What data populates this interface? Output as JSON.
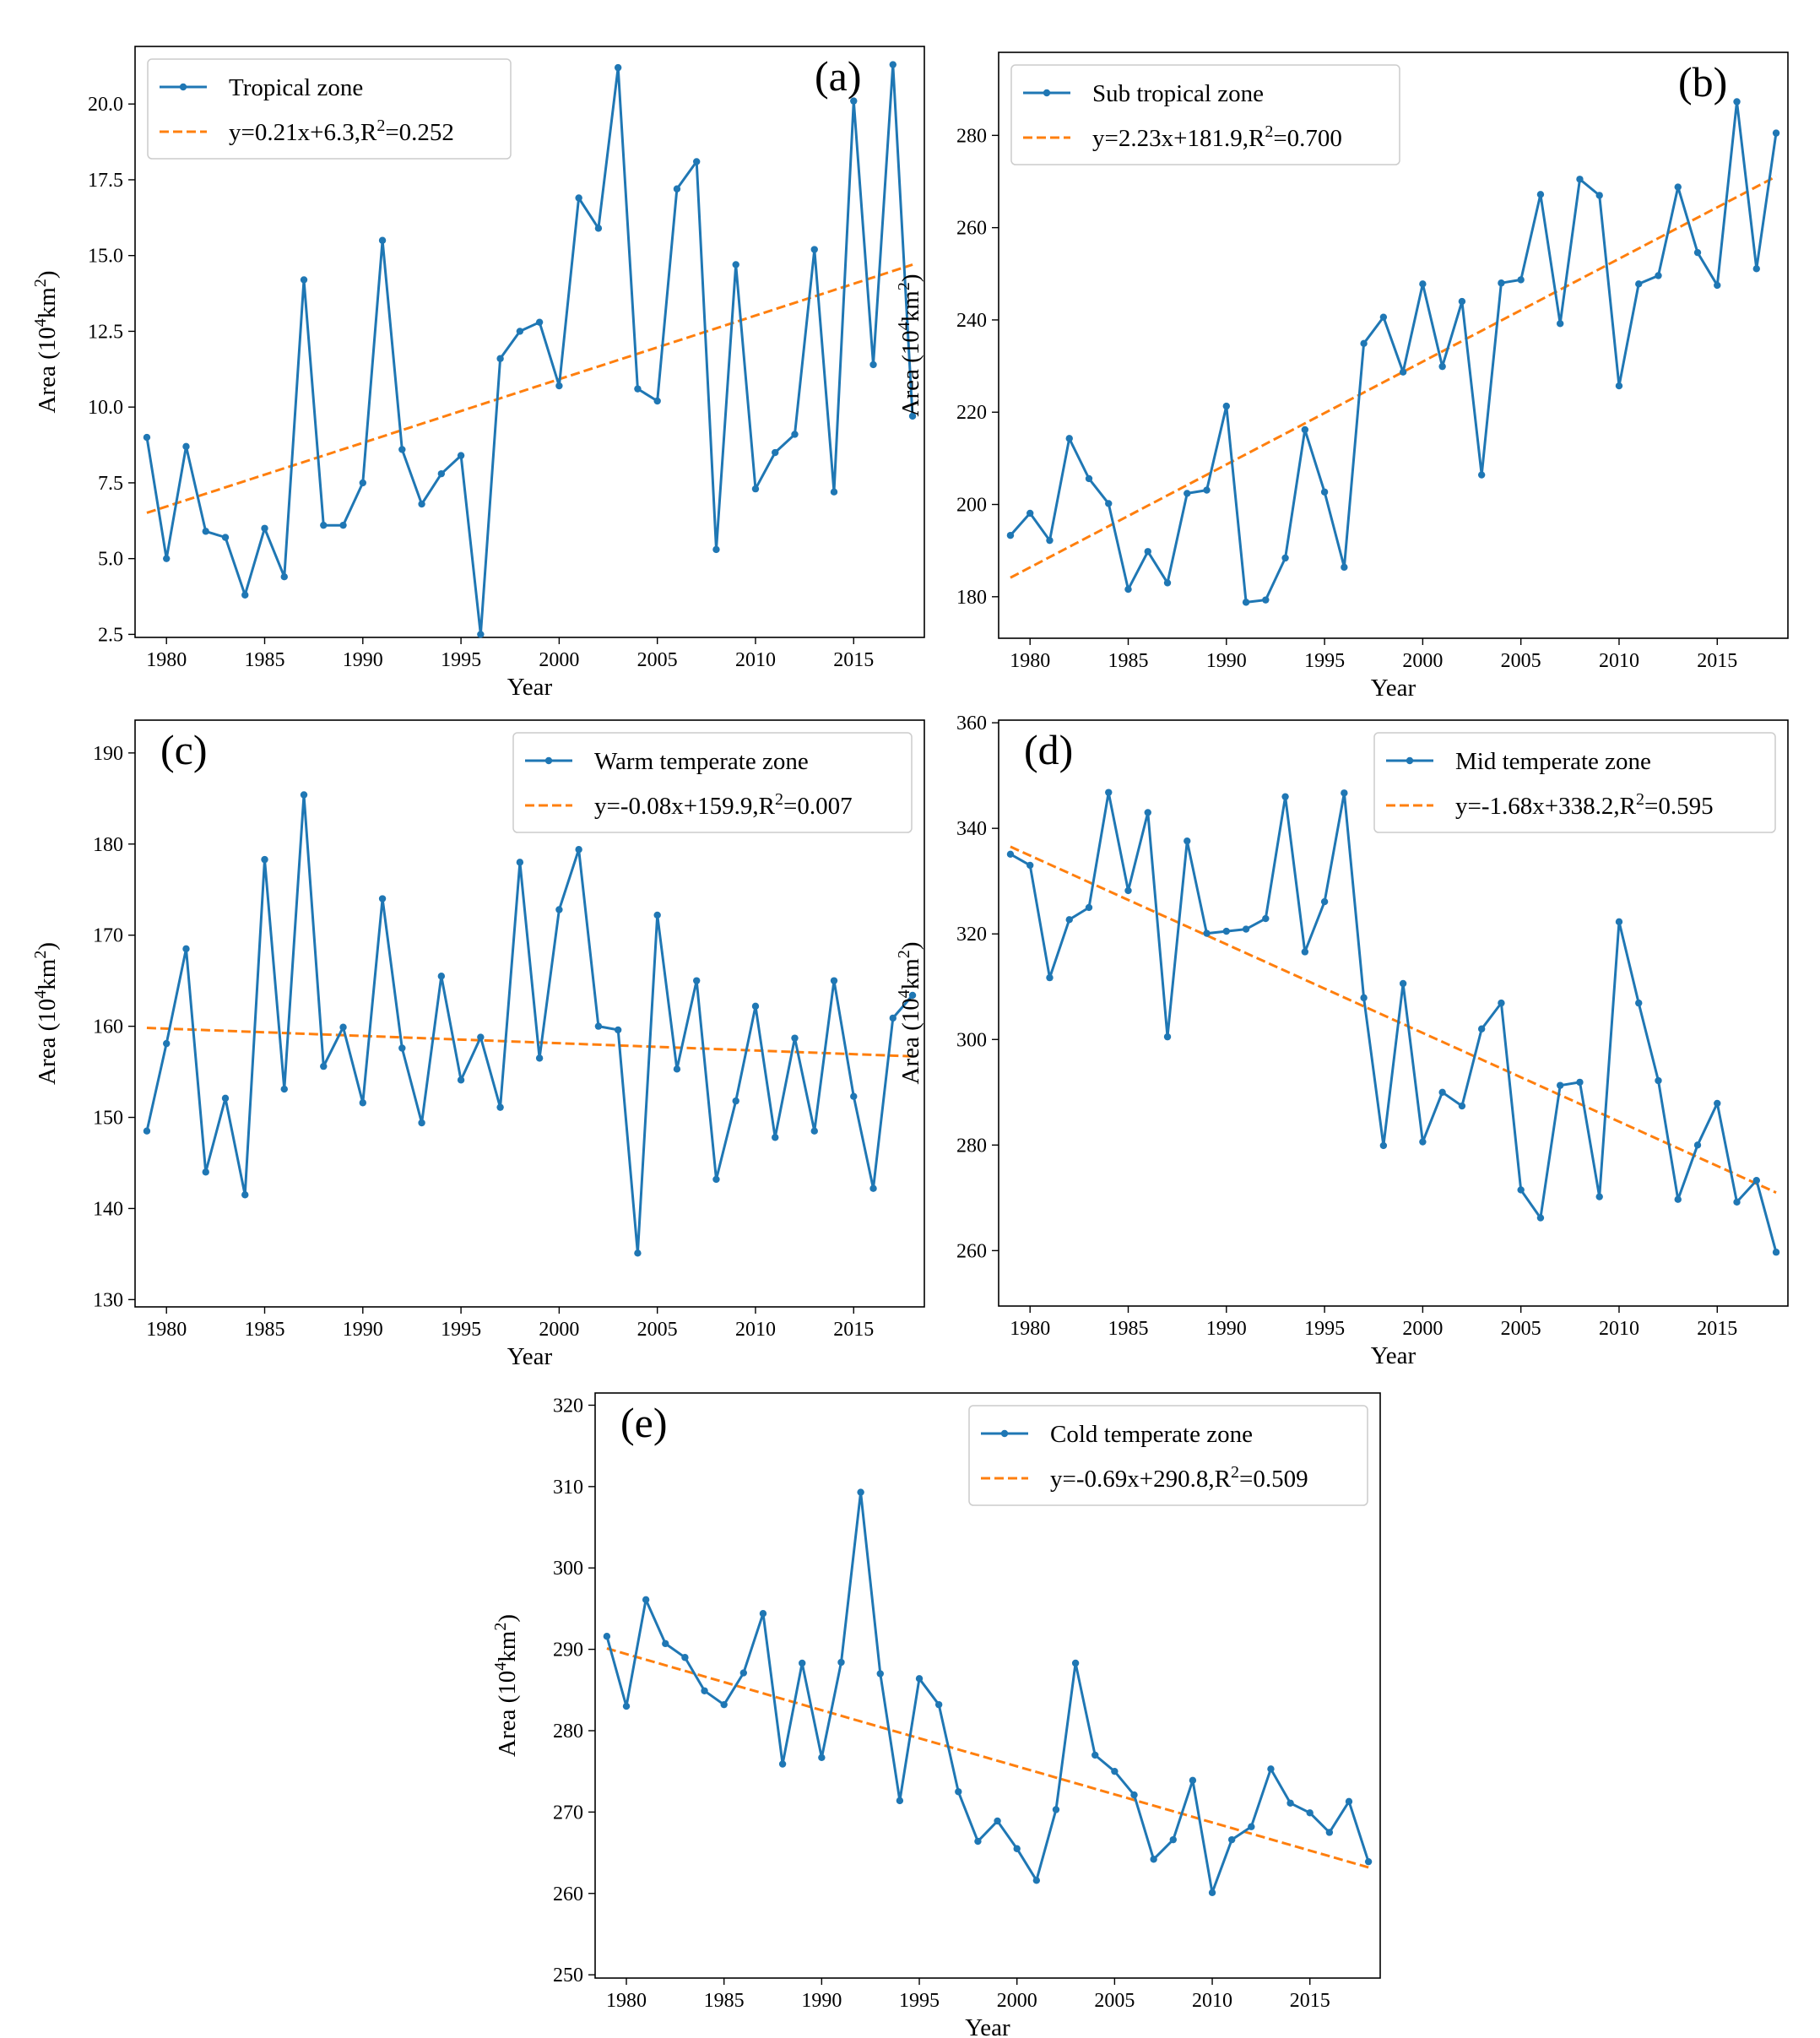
{
  "colors": {
    "series": "#1f77b4",
    "fit": "#ff7f0e"
  },
  "ylabel_text": {
    "main": "Area (10",
    "sup1": "4",
    "unit": "km",
    "sup2": "2",
    "close": ")"
  },
  "xlabel": "Year",
  "chart_data": [
    {
      "id": "a",
      "type": "line",
      "panel_label": "(a)",
      "xlabel": "Year",
      "xlim": [
        1978.4,
        2018.6
      ],
      "ylim": [
        2.4,
        21.9
      ],
      "xticks": [
        1980,
        1985,
        1990,
        1995,
        2000,
        2005,
        2010,
        2015
      ],
      "yticks": [
        2.5,
        5.0,
        7.5,
        10.0,
        12.5,
        15.0,
        17.5,
        20.0
      ],
      "ytick_decimals": 1,
      "legend": {
        "position": "upper-left",
        "series_name": "Tropical zone",
        "fit_name": "y=0.21x+6.3,R",
        "fit_sup": "2",
        "fit_tail": "=0.252"
      },
      "fit": {
        "slope": 0.21,
        "intercept": 6.3,
        "r2": 0.252
      },
      "x": [
        1979,
        1980,
        1981,
        1982,
        1983,
        1984,
        1985,
        1986,
        1987,
        1988,
        1989,
        1990,
        1991,
        1992,
        1993,
        1994,
        1995,
        1996,
        1997,
        1998,
        1999,
        2000,
        2001,
        2002,
        2003,
        2004,
        2005,
        2006,
        2007,
        2008,
        2009,
        2010,
        2011,
        2012,
        2013,
        2014,
        2015,
        2016,
        2017,
        2018
      ],
      "values": [
        9.0,
        5.0,
        8.7,
        5.9,
        5.7,
        3.8,
        6.0,
        4.4,
        14.2,
        6.1,
        6.1,
        7.5,
        15.5,
        8.6,
        6.8,
        7.8,
        8.4,
        2.5,
        11.6,
        12.5,
        12.8,
        10.7,
        16.9,
        15.9,
        21.2,
        10.6,
        10.2,
        17.2,
        18.1,
        5.3,
        14.7,
        7.3,
        8.5,
        9.1,
        15.2,
        7.2,
        20.1,
        11.4,
        21.3,
        9.7
      ]
    },
    {
      "id": "b",
      "type": "line",
      "panel_label": "(b)",
      "xlabel": "Year",
      "xlim": [
        1978.4,
        2018.6
      ],
      "ylim": [
        171,
        298
      ],
      "xticks": [
        1980,
        1985,
        1990,
        1995,
        2000,
        2005,
        2010,
        2015
      ],
      "yticks": [
        180,
        200,
        220,
        240,
        260,
        280
      ],
      "ytick_decimals": 0,
      "legend": {
        "position": "upper-left",
        "series_name": "Sub tropical zone",
        "fit_name": "y=2.23x+181.9,R",
        "fit_sup": "2",
        "fit_tail": "=0.700"
      },
      "fit": {
        "slope": 2.23,
        "intercept": 181.9,
        "r2": 0.7
      },
      "x": [
        1979,
        1980,
        1981,
        1982,
        1983,
        1984,
        1985,
        1986,
        1987,
        1988,
        1989,
        1990,
        1991,
        1992,
        1993,
        1994,
        1995,
        1996,
        1997,
        1998,
        1999,
        2000,
        2001,
        2002,
        2003,
        2004,
        2005,
        2006,
        2007,
        2008,
        2009,
        2010,
        2011,
        2012,
        2013,
        2014,
        2015,
        2016,
        2017,
        2018
      ],
      "values": [
        193.3,
        198.1,
        192.2,
        214.3,
        205.6,
        200.2,
        181.6,
        189.8,
        183.0,
        202.4,
        203.1,
        221.3,
        178.8,
        179.3,
        188.4,
        216.2,
        202.7,
        186.4,
        234.9,
        240.6,
        228.7,
        247.8,
        229.9,
        244.0,
        206.4,
        248.0,
        248.7,
        267.2,
        239.2,
        270.5,
        267.0,
        225.7,
        247.8,
        249.6,
        268.8,
        254.6,
        247.5,
        287.3,
        251.1,
        280.5
      ]
    },
    {
      "id": "c",
      "type": "line",
      "panel_label": "(c)",
      "xlabel": "Year",
      "xlim": [
        1978.4,
        2018.6
      ],
      "ylim": [
        129.2,
        193.6
      ],
      "xticks": [
        1980,
        1985,
        1990,
        1995,
        2000,
        2005,
        2010,
        2015
      ],
      "yticks": [
        130,
        140,
        150,
        160,
        170,
        180,
        190
      ],
      "ytick_decimals": 0,
      "legend": {
        "position": "upper-right",
        "series_name": "Warm temperate zone",
        "fit_name": "y=-0.08x+159.9,R",
        "fit_sup": "2",
        "fit_tail": "=0.007"
      },
      "fit": {
        "slope": -0.08,
        "intercept": 159.9,
        "r2": 0.007
      },
      "x": [
        1979,
        1980,
        1981,
        1982,
        1983,
        1984,
        1985,
        1986,
        1987,
        1988,
        1989,
        1990,
        1991,
        1992,
        1993,
        1994,
        1995,
        1996,
        1997,
        1998,
        1999,
        2000,
        2001,
        2002,
        2003,
        2004,
        2005,
        2006,
        2007,
        2008,
        2009,
        2010,
        2011,
        2012,
        2013,
        2014,
        2015,
        2016,
        2017,
        2018
      ],
      "values": [
        148.5,
        158.1,
        168.5,
        144.0,
        152.1,
        141.5,
        178.3,
        153.1,
        185.4,
        155.6,
        159.9,
        151.6,
        174.0,
        157.6,
        149.4,
        165.5,
        154.1,
        158.8,
        151.1,
        178.0,
        156.5,
        172.8,
        179.4,
        160.0,
        159.6,
        135.1,
        172.2,
        155.3,
        165.0,
        143.2,
        151.8,
        162.2,
        147.8,
        158.7,
        148.5,
        165.0,
        152.3,
        142.2,
        160.9,
        163.4
      ]
    },
    {
      "id": "d",
      "type": "line",
      "panel_label": "(d)",
      "xlabel": "Year",
      "xlim": [
        1978.4,
        2018.6
      ],
      "ylim": [
        249.5,
        360.5
      ],
      "xticks": [
        1980,
        1985,
        1990,
        1995,
        2000,
        2005,
        2010,
        2015
      ],
      "yticks": [
        260,
        280,
        300,
        320,
        340,
        360
      ],
      "ytick_decimals": 0,
      "legend": {
        "position": "upper-right",
        "series_name": "Mid temperate zone",
        "fit_name": "y=-1.68x+338.2,R",
        "fit_sup": "2",
        "fit_tail": "=0.595"
      },
      "fit": {
        "slope": -1.68,
        "intercept": 338.2,
        "r2": 0.595
      },
      "x": [
        1979,
        1980,
        1981,
        1982,
        1983,
        1984,
        1985,
        1986,
        1987,
        1988,
        1989,
        1990,
        1991,
        1992,
        1993,
        1994,
        1995,
        1996,
        1997,
        1998,
        1999,
        2000,
        2001,
        2002,
        2003,
        2004,
        2005,
        2006,
        2007,
        2008,
        2009,
        2010,
        2011,
        2012,
        2013,
        2014,
        2015,
        2016,
        2017,
        2018
      ],
      "values": [
        335.1,
        333.0,
        311.7,
        322.7,
        325.0,
        346.8,
        328.2,
        343.0,
        300.5,
        337.6,
        320.1,
        320.5,
        320.9,
        322.9,
        346.0,
        316.6,
        326.1,
        346.7,
        307.9,
        279.9,
        310.6,
        280.6,
        290.0,
        287.4,
        302.0,
        306.9,
        271.5,
        266.2,
        291.3,
        291.9,
        270.2,
        322.3,
        306.9,
        292.2,
        269.7,
        280.0,
        287.9,
        269.2,
        273.3,
        259.7
      ]
    },
    {
      "id": "e",
      "type": "line",
      "panel_label": "(e)",
      "xlabel": "Year",
      "xlim": [
        1978.4,
        2018.6
      ],
      "ylim": [
        249.6,
        321.5
      ],
      "xticks": [
        1980,
        1985,
        1990,
        1995,
        2000,
        2005,
        2010,
        2015
      ],
      "yticks": [
        250,
        260,
        270,
        280,
        290,
        300,
        310,
        320
      ],
      "ytick_decimals": 0,
      "legend": {
        "position": "upper-right",
        "series_name": "Cold temperate zone",
        "fit_name": "y=-0.69x+290.8,R",
        "fit_sup": "2",
        "fit_tail": "=0.509"
      },
      "fit": {
        "slope": -0.69,
        "intercept": 290.8,
        "r2": 0.509
      },
      "x": [
        1979,
        1980,
        1981,
        1982,
        1983,
        1984,
        1985,
        1986,
        1987,
        1988,
        1989,
        1990,
        1991,
        1992,
        1993,
        1994,
        1995,
        1996,
        1997,
        1998,
        1999,
        2000,
        2001,
        2002,
        2003,
        2004,
        2005,
        2006,
        2007,
        2008,
        2009,
        2010,
        2011,
        2012,
        2013,
        2014,
        2015,
        2016,
        2017,
        2018
      ],
      "values": [
        291.6,
        283.0,
        296.1,
        290.7,
        289.0,
        284.9,
        283.2,
        287.1,
        294.4,
        275.9,
        288.3,
        276.7,
        288.4,
        309.3,
        287.0,
        271.4,
        286.4,
        283.2,
        272.5,
        266.4,
        268.9,
        265.5,
        261.6,
        270.3,
        288.3,
        277.0,
        275.0,
        272.1,
        264.2,
        266.6,
        273.9,
        260.1,
        266.6,
        268.2,
        275.3,
        271.1,
        269.9,
        267.5,
        271.3,
        263.9
      ]
    }
  ]
}
